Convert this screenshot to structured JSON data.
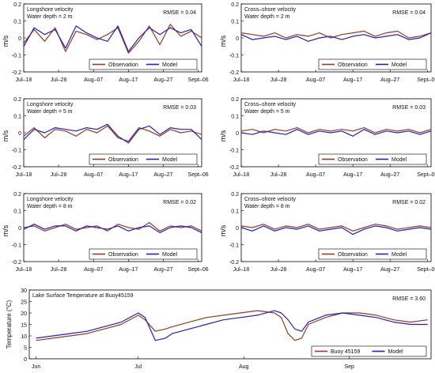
{
  "colors": {
    "observation": "#a0381c",
    "model": "#1f1fd6",
    "frame": "#000000"
  },
  "legend": {
    "observation": "Observation",
    "model": "Model"
  },
  "chart_data": [
    {
      "id": "longshore-2m",
      "type": "line",
      "title": [
        "Longshore velocity",
        "Water depth = 2 m"
      ],
      "annotation": "RMSE = 0.04",
      "ylabel": "m/s",
      "ylim": [
        -0.2,
        0.2
      ],
      "yticks": [
        -0.2,
        -0.1,
        0,
        0.1,
        0.2
      ],
      "x": [
        0,
        3,
        6,
        9,
        12,
        15,
        18,
        21,
        24,
        27,
        30,
        33,
        36,
        39,
        42,
        45,
        48,
        51
      ],
      "xlim": [
        0,
        51
      ],
      "xticks": [
        {
          "label": "Jul–18",
          "x": 0
        },
        {
          "label": "Jul–28",
          "x": 10
        },
        {
          "label": "Aug–07",
          "x": 20
        },
        {
          "label": "Aug–17",
          "x": 30
        },
        {
          "label": "Aug–27",
          "x": 40
        },
        {
          "label": "Sept–06",
          "x": 50
        }
      ],
      "series": [
        {
          "name": "Observation",
          "values": [
            -0.03,
            0.05,
            -0.02,
            0.06,
            -0.08,
            0.04,
            0.02,
            -0.01,
            0.02,
            0.06,
            -0.09,
            -0.02,
            0.07,
            -0.04,
            0.08,
            0.01,
            0.04,
            0.0
          ]
        },
        {
          "name": "Model",
          "values": [
            -0.05,
            0.06,
            0.02,
            0.05,
            -0.06,
            0.07,
            0.03,
            0.0,
            -0.02,
            0.07,
            -0.08,
            0.0,
            0.06,
            0.02,
            0.06,
            0.03,
            0.05,
            -0.05
          ]
        }
      ]
    },
    {
      "id": "crossshore-2m",
      "type": "line",
      "title": [
        "Cross–shore velocity",
        "Water depth = 2 m"
      ],
      "annotation": "RMSE = 0.04",
      "ylabel": "m/s",
      "ylim": [
        -0.2,
        0.2
      ],
      "yticks": [
        -0.2,
        -0.1,
        0,
        0.1,
        0.2
      ],
      "x": [
        0,
        3,
        6,
        9,
        12,
        15,
        18,
        21,
        24,
        27,
        30,
        33,
        36,
        39,
        42,
        45,
        48,
        51
      ],
      "xlim": [
        0,
        51
      ],
      "xticks": [
        {
          "label": "Jul–18",
          "x": 0
        },
        {
          "label": "Jul–28",
          "x": 10
        },
        {
          "label": "Aug–07",
          "x": 20
        },
        {
          "label": "Aug–17",
          "x": 30
        },
        {
          "label": "Aug–27",
          "x": 40
        },
        {
          "label": "Sept–06",
          "x": 50
        }
      ],
      "series": [
        {
          "name": "Observation",
          "values": [
            0.03,
            0.02,
            0.01,
            0.03,
            0.0,
            0.02,
            0.01,
            0.03,
            0.0,
            0.02,
            0.03,
            0.04,
            0.01,
            0.03,
            0.04,
            0.0,
            0.01,
            0.03
          ]
        },
        {
          "name": "Model",
          "values": [
            0.02,
            -0.01,
            0.0,
            0.01,
            -0.01,
            0.01,
            -0.02,
            0.0,
            0.01,
            -0.01,
            0.01,
            0.02,
            0.0,
            0.01,
            0.02,
            -0.01,
            0.0,
            0.03
          ]
        }
      ]
    },
    {
      "id": "longshore-5m",
      "type": "line",
      "title": [
        "Longshore velocity",
        "Water depth = 5 m"
      ],
      "annotation": "RMSE = 0.03",
      "ylabel": "m/s",
      "ylim": [
        -0.2,
        0.2
      ],
      "yticks": [
        -0.2,
        -0.1,
        0,
        0.1,
        0.2
      ],
      "x": [
        0,
        3,
        6,
        9,
        12,
        15,
        18,
        21,
        24,
        27,
        30,
        33,
        36,
        39,
        42,
        45,
        48,
        51
      ],
      "xlim": [
        0,
        51
      ],
      "xticks": [
        {
          "label": "Jul–18",
          "x": 0
        },
        {
          "label": "Jul–28",
          "x": 10
        },
        {
          "label": "Aug–07",
          "x": 20
        },
        {
          "label": "Aug–17",
          "x": 30
        },
        {
          "label": "Aug–27",
          "x": 40
        },
        {
          "label": "Sept–06",
          "x": 50
        }
      ],
      "series": [
        {
          "name": "Observation",
          "values": [
            -0.02,
            0.03,
            -0.03,
            0.02,
            0.01,
            -0.02,
            0.02,
            0.0,
            0.04,
            -0.03,
            -0.05,
            0.03,
            0.01,
            -0.02,
            0.02,
            0.0,
            0.01,
            -0.01
          ]
        },
        {
          "name": "Model",
          "values": [
            -0.04,
            0.02,
            0.0,
            0.03,
            0.02,
            0.01,
            0.03,
            0.02,
            0.05,
            -0.02,
            -0.06,
            0.02,
            0.04,
            -0.01,
            0.03,
            0.02,
            0.02,
            -0.04
          ]
        }
      ]
    },
    {
      "id": "crossshore-5m",
      "type": "line",
      "title": [
        "Cross–shore velocity",
        "Water depth = 5 m"
      ],
      "annotation": "RMSE = 0.03",
      "ylabel": "m/s",
      "ylim": [
        -0.2,
        0.2
      ],
      "yticks": [
        -0.2,
        -0.1,
        0,
        0.1,
        0.2
      ],
      "x": [
        0,
        3,
        6,
        9,
        12,
        15,
        18,
        21,
        24,
        27,
        30,
        33,
        36,
        39,
        42,
        45,
        48,
        51
      ],
      "xlim": [
        0,
        51
      ],
      "xticks": [
        {
          "label": "Jul–18",
          "x": 0
        },
        {
          "label": "Jul–28",
          "x": 10
        },
        {
          "label": "Aug–07",
          "x": 20
        },
        {
          "label": "Aug–17",
          "x": 30
        },
        {
          "label": "Aug–27",
          "x": 40
        },
        {
          "label": "Sept–06",
          "x": 50
        }
      ],
      "series": [
        {
          "name": "Observation",
          "values": [
            0.01,
            0.02,
            0.0,
            0.02,
            0.01,
            0.03,
            0.0,
            0.02,
            0.01,
            0.02,
            0.01,
            0.03,
            0.0,
            0.02,
            0.01,
            0.02,
            0.0,
            0.02
          ]
        },
        {
          "name": "Model",
          "values": [
            0.0,
            -0.01,
            0.01,
            0.0,
            -0.01,
            0.02,
            -0.01,
            0.01,
            0.0,
            0.01,
            -0.02,
            0.02,
            -0.01,
            0.01,
            0.0,
            0.01,
            -0.01,
            0.01
          ]
        }
      ]
    },
    {
      "id": "longshore-8m",
      "type": "line",
      "title": [
        "Longshore velocity",
        "Water depth = 8 m"
      ],
      "annotation": "RMSE = 0.02",
      "ylabel": "m/s",
      "ylim": [
        -0.2,
        0.2
      ],
      "yticks": [
        -0.2,
        -0.1,
        0,
        0.1,
        0.2
      ],
      "x": [
        0,
        3,
        6,
        9,
        12,
        15,
        18,
        21,
        24,
        27,
        30,
        33,
        36,
        39,
        42,
        45,
        48,
        51
      ],
      "xlim": [
        0,
        51
      ],
      "xticks": [
        {
          "label": "Jul–18",
          "x": 0
        },
        {
          "label": "Jul–28",
          "x": 10
        },
        {
          "label": "Aug–07",
          "x": 20
        },
        {
          "label": "Aug–17",
          "x": 30
        },
        {
          "label": "Aug–27",
          "x": 40
        },
        {
          "label": "Sept–06",
          "x": 50
        }
      ],
      "series": [
        {
          "name": "Observation",
          "values": [
            0.0,
            0.01,
            -0.02,
            0.0,
            0.02,
            -0.01,
            0.0,
            0.01,
            -0.02,
            0.02,
            0.0,
            -0.01,
            0.03,
            -0.02,
            0.01,
            0.0,
            0.01,
            -0.02
          ]
        },
        {
          "name": "Model",
          "values": [
            -0.01,
            0.02,
            -0.01,
            0.01,
            0.01,
            -0.02,
            0.01,
            0.0,
            -0.01,
            0.01,
            -0.02,
            0.0,
            0.01,
            -0.03,
            0.0,
            0.01,
            0.0,
            -0.03
          ]
        }
      ]
    },
    {
      "id": "crossshore-8m",
      "type": "line",
      "title": [
        "Cross–shore velocity",
        "Water depth = 8 m"
      ],
      "annotation": "RMSE = 0.02",
      "ylabel": "m/s",
      "ylim": [
        -0.2,
        0.2
      ],
      "yticks": [
        -0.2,
        -0.1,
        0,
        0.1,
        0.2
      ],
      "x": [
        0,
        3,
        6,
        9,
        12,
        15,
        18,
        21,
        24,
        27,
        30,
        33,
        36,
        39,
        42,
        45,
        48,
        51
      ],
      "xlim": [
        0,
        51
      ],
      "xticks": [
        {
          "label": "Jul–18",
          "x": 0
        },
        {
          "label": "Jul–28",
          "x": 10
        },
        {
          "label": "Aug–07",
          "x": 20
        },
        {
          "label": "Aug–17",
          "x": 30
        },
        {
          "label": "Aug–27",
          "x": 40
        },
        {
          "label": "Sept–06",
          "x": 50
        }
      ],
      "series": [
        {
          "name": "Observation",
          "values": [
            0.01,
            0.0,
            0.02,
            -0.01,
            0.01,
            0.0,
            0.02,
            -0.01,
            0.0,
            0.01,
            -0.02,
            0.0,
            0.02,
            0.01,
            -0.01,
            0.0,
            0.01,
            0.0
          ]
        },
        {
          "name": "Model",
          "values": [
            0.0,
            -0.02,
            0.01,
            -0.02,
            0.0,
            -0.01,
            0.01,
            -0.02,
            -0.01,
            0.0,
            -0.04,
            -0.01,
            0.01,
            0.0,
            -0.02,
            -0.01,
            0.0,
            -0.01
          ]
        }
      ]
    },
    {
      "id": "lake-temperature",
      "type": "line",
      "title": [
        "Lake Surface Temperature at Buoy45159"
      ],
      "annotation": "RMSE = 3.60",
      "ylabel": "Temperature (°C)",
      "ylim": [
        0,
        30
      ],
      "yticks": [
        0,
        5,
        10,
        15,
        20,
        25,
        30
      ],
      "x": [
        0,
        5,
        10,
        15,
        20,
        25,
        30,
        32,
        35,
        38,
        40,
        45,
        50,
        55,
        60,
        65,
        70,
        72,
        74,
        76,
        78,
        80,
        85,
        90,
        95,
        100,
        105,
        110,
        115
      ],
      "xlim": [
        -2,
        116
      ],
      "xticks": [
        {
          "label": "Jun",
          "x": 0
        },
        {
          "label": "Jul",
          "x": 30
        },
        {
          "label": "Aug",
          "x": 61
        },
        {
          "label": "Sep",
          "x": 92
        }
      ],
      "legend_labels": [
        "Buoy 45159",
        "Model"
      ],
      "series": [
        {
          "name": "Buoy 45159",
          "values": [
            8,
            9,
            10,
            11,
            13,
            15,
            19,
            17,
            12,
            13,
            14,
            16,
            18,
            19,
            20,
            21,
            20,
            18,
            11,
            8,
            9,
            15,
            18,
            20,
            20,
            19,
            17,
            16,
            17
          ]
        },
        {
          "name": "Model",
          "values": [
            9,
            10,
            11,
            12,
            14,
            16,
            20,
            18,
            8,
            9,
            11,
            13,
            15,
            17,
            18,
            19,
            21,
            20,
            17,
            13,
            12,
            16,
            19,
            20,
            19,
            18,
            16,
            15,
            15
          ]
        }
      ]
    }
  ]
}
